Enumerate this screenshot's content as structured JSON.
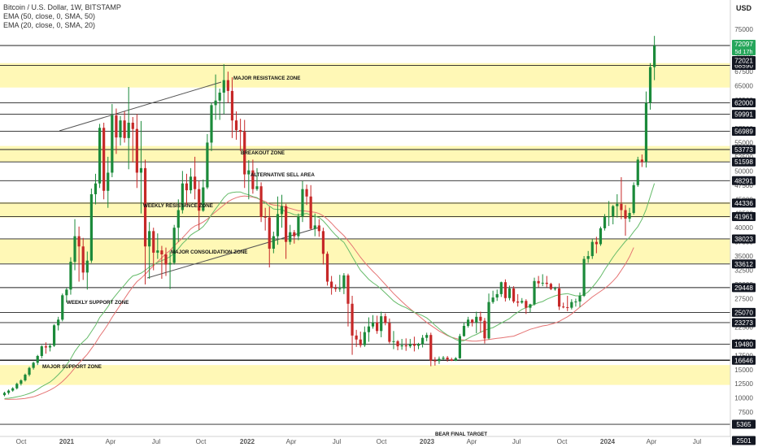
{
  "header": {
    "symbol_line": "Bitcoin / U.S. Dollar, 1W, BITSTAMP",
    "ema1": "EMA (50, close, 0, SMA, 50)",
    "ema2": "EMA (20, close, 0, SMA, 20)",
    "currency": "USD"
  },
  "chart_data": {
    "type": "candlestick",
    "price_ticks": [
      5000,
      7500,
      10000,
      12500,
      15000,
      17500,
      20000,
      22500,
      25000,
      27500,
      30000,
      32500,
      35000,
      37500,
      40000,
      42500,
      45000,
      47500,
      50000,
      52500,
      55000,
      57500,
      60000,
      62500,
      65000,
      67500,
      70000,
      72500,
      75000
    ],
    "time_ticks": [
      {
        "label": "Oct",
        "bold": false
      },
      {
        "label": "2021",
        "bold": true
      },
      {
        "label": "Apr",
        "bold": false
      },
      {
        "label": "Jul",
        "bold": false
      },
      {
        "label": "Oct",
        "bold": false
      },
      {
        "label": "2022",
        "bold": true
      },
      {
        "label": "Apr",
        "bold": false
      },
      {
        "label": "Jul",
        "bold": false
      },
      {
        "label": "Oct",
        "bold": false
      },
      {
        "label": "2023",
        "bold": true
      },
      {
        "label": "Apr",
        "bold": false
      },
      {
        "label": "Jul",
        "bold": false
      },
      {
        "label": "Oct",
        "bold": false
      },
      {
        "label": "2024",
        "bold": true
      },
      {
        "label": "Apr",
        "bold": false
      },
      {
        "label": "Jul",
        "bold": false
      }
    ],
    "levels": [
      "68590",
      "62000",
      "59991",
      "56989",
      "53773",
      "51598",
      "48291",
      "44336",
      "41961",
      "38023",
      "33612",
      "29448",
      "25070",
      "23273",
      "19480",
      "16646",
      "5365",
      "2501"
    ],
    "current_price": {
      "value": "72097",
      "countdown": "5d 17h"
    },
    "last_close_label": "72021",
    "zones": [
      {
        "name": "MAJOR RESISTANCE ZONE",
        "low": 64700,
        "high": 69000
      },
      {
        "name": "BREAKOUT ZONE",
        "low": 51600,
        "high": 54400
      },
      {
        "name": "WEEKLY RESISTANCE ZONE",
        "low": 41800,
        "high": 44500
      },
      {
        "name": "MAJOR CONSOLIDATION ZONE",
        "low": 33700,
        "high": 38000
      },
      {
        "name": "MAJOR SUPPORT ZONE",
        "low": 12300,
        "high": 15800
      }
    ],
    "annotations": {
      "alt_sell": "ALTERNATIVE SELL AREA",
      "weekly_support": "WEEKLY SUPPORT ZONE",
      "bear_target": "BEAR FINAL TARGET"
    },
    "ohlc_weekly": [
      [
        10500,
        11100,
        10300,
        10900
      ],
      [
        10900,
        11500,
        10600,
        11300
      ],
      [
        11300,
        11900,
        11100,
        11700
      ],
      [
        11700,
        12700,
        11500,
        12500
      ],
      [
        12500,
        13300,
        12200,
        13100
      ],
      [
        13100,
        14300,
        12900,
        14100
      ],
      [
        14100,
        15500,
        13800,
        15300
      ],
      [
        15300,
        16400,
        15000,
        16200
      ],
      [
        16200,
        17600,
        15800,
        17400
      ],
      [
        17400,
        19300,
        17000,
        19100
      ],
      [
        19100,
        19800,
        17800,
        18900
      ],
      [
        18900,
        19600,
        18200,
        19200
      ],
      [
        19200,
        23000,
        19000,
        22800
      ],
      [
        22800,
        24300,
        21900,
        23800
      ],
      [
        23800,
        28400,
        23500,
        28100
      ],
      [
        28100,
        29400,
        26800,
        29100
      ],
      [
        29100,
        34800,
        28200,
        34000
      ],
      [
        34000,
        41500,
        32500,
        38500
      ],
      [
        38500,
        40200,
        30500,
        36700
      ],
      [
        36700,
        38200,
        30800,
        32100
      ],
      [
        32100,
        35800,
        29100,
        34200
      ],
      [
        34200,
        46900,
        33800,
        45900
      ],
      [
        45900,
        49500,
        44100,
        47800
      ],
      [
        47800,
        58300,
        47000,
        57600
      ],
      [
        57600,
        58500,
        45000,
        46500
      ],
      [
        46500,
        52500,
        43500,
        49700
      ],
      [
        49700,
        61800,
        48900,
        59800
      ],
      [
        59800,
        61000,
        53000,
        55900
      ],
      [
        55900,
        59700,
        54500,
        58900
      ],
      [
        58900,
        60500,
        55000,
        55800
      ],
      [
        55800,
        64800,
        50300,
        58500
      ],
      [
        58500,
        59500,
        51500,
        57400
      ],
      [
        57400,
        60000,
        47000,
        49700
      ],
      [
        49700,
        58800,
        42500,
        50500
      ],
      [
        50500,
        52000,
        30000,
        36700
      ],
      [
        36700,
        41000,
        31000,
        39400
      ],
      [
        39400,
        40000,
        32500,
        35600
      ],
      [
        35600,
        39000,
        34500,
        36000
      ],
      [
        36000,
        36800,
        31000,
        35300
      ],
      [
        35300,
        36500,
        31500,
        33500
      ],
      [
        33500,
        35800,
        29200,
        33800
      ],
      [
        33800,
        40500,
        33500,
        40000
      ],
      [
        40000,
        45000,
        37500,
        43100
      ],
      [
        43100,
        50000,
        42500,
        47800
      ],
      [
        47800,
        49500,
        44000,
        46600
      ],
      [
        46600,
        50500,
        46000,
        49000
      ],
      [
        49000,
        52500,
        45000,
        46800
      ],
      [
        46800,
        48200,
        39600,
        43000
      ],
      [
        43000,
        48500,
        42800,
        47100
      ],
      [
        47100,
        56500,
        46800,
        55000
      ],
      [
        55000,
        62000,
        53500,
        61600
      ],
      [
        61600,
        67000,
        59000,
        62400
      ],
      [
        62400,
        64500,
        59000,
        63800
      ],
      [
        63800,
        68800,
        60000,
        66000
      ],
      [
        66000,
        67500,
        62000,
        64100
      ],
      [
        64100,
        66500,
        55800,
        58900
      ],
      [
        58900,
        60500,
        55500,
        57200
      ],
      [
        57200,
        59200,
        53500,
        56900
      ],
      [
        56900,
        59000,
        47000,
        49400
      ],
      [
        49400,
        51900,
        45000,
        50100
      ],
      [
        50100,
        52000,
        46000,
        46800
      ],
      [
        46800,
        50500,
        46500,
        47300
      ],
      [
        47300,
        48000,
        41000,
        41900
      ],
      [
        41900,
        43500,
        39500,
        41800
      ],
      [
        41800,
        43700,
        33000,
        36300
      ],
      [
        36300,
        39300,
        35500,
        38500
      ],
      [
        38500,
        45500,
        37000,
        42400
      ],
      [
        42400,
        45800,
        40000,
        43800
      ],
      [
        43800,
        44200,
        34500,
        37500
      ],
      [
        37500,
        40500,
        37000,
        39200
      ],
      [
        39200,
        39600,
        37200,
        38500
      ],
      [
        38500,
        42500,
        37800,
        42000
      ],
      [
        42000,
        48200,
        41000,
        46800
      ],
      [
        46800,
        47600,
        44000,
        45500
      ],
      [
        45500,
        47500,
        39600,
        39800
      ],
      [
        39800,
        42500,
        38500,
        40400
      ],
      [
        40400,
        41500,
        38400,
        39400
      ],
      [
        39400,
        40000,
        33500,
        35400
      ],
      [
        35400,
        35800,
        29800,
        30500
      ],
      [
        30500,
        31500,
        28200,
        29400
      ],
      [
        29400,
        30000,
        28700,
        29200
      ],
      [
        29200,
        31700,
        28700,
        29300
      ],
      [
        29300,
        32000,
        28300,
        31600
      ],
      [
        31600,
        31900,
        22600,
        26600
      ],
      [
        26600,
        28000,
        17600,
        21000
      ],
      [
        21000,
        22000,
        19000,
        20300
      ],
      [
        20300,
        21700,
        18900,
        19300
      ],
      [
        19300,
        22600,
        19000,
        21600
      ],
      [
        21600,
        24200,
        19900,
        22600
      ],
      [
        22600,
        24600,
        22200,
        23300
      ],
      [
        23300,
        24500,
        21300,
        21800
      ],
      [
        21800,
        25200,
        20700,
        24400
      ],
      [
        24400,
        24900,
        22800,
        23200
      ],
      [
        23200,
        24000,
        19600,
        19900
      ],
      [
        19900,
        21800,
        18600,
        20000
      ],
      [
        20000,
        20200,
        18400,
        19100
      ],
      [
        19100,
        20400,
        18500,
        19300
      ],
      [
        19300,
        20500,
        18300,
        19100
      ],
      [
        19100,
        20400,
        18800,
        19500
      ],
      [
        19500,
        20800,
        18200,
        19200
      ],
      [
        19200,
        19700,
        18600,
        19500
      ],
      [
        19500,
        21100,
        18900,
        20600
      ],
      [
        20600,
        21500,
        20000,
        21100
      ],
      [
        21100,
        21500,
        15600,
        16600
      ],
      [
        16600,
        17200,
        15700,
        16500
      ],
      [
        16500,
        17300,
        16000,
        16900
      ],
      [
        16900,
        17400,
        16700,
        17100
      ],
      [
        17100,
        17400,
        16400,
        16800
      ],
      [
        16800,
        17100,
        16500,
        16550
      ],
      [
        16550,
        17200,
        16500,
        17000
      ],
      [
        17000,
        21300,
        16900,
        20900
      ],
      [
        20900,
        23300,
        20800,
        22700
      ],
      [
        22700,
        24300,
        22400,
        23800
      ],
      [
        23800,
        23900,
        22600,
        23300
      ],
      [
        23300,
        25200,
        21400,
        24300
      ],
      [
        24300,
        25200,
        21500,
        23600
      ],
      [
        23600,
        24100,
        19600,
        20500
      ],
      [
        20500,
        28400,
        20300,
        26900
      ],
      [
        26900,
        28900,
        26600,
        27700
      ],
      [
        27700,
        29100,
        27100,
        28300
      ],
      [
        28300,
        30500,
        27800,
        30400
      ],
      [
        30400,
        30900,
        27000,
        27600
      ],
      [
        27600,
        29800,
        27200,
        29300
      ],
      [
        29300,
        29700,
        26700,
        27000
      ],
      [
        27000,
        28300,
        26100,
        26800
      ],
      [
        26800,
        27600,
        26600,
        27100
      ],
      [
        27100,
        27400,
        24800,
        25900
      ],
      [
        25900,
        26600,
        25100,
        26500
      ],
      [
        26500,
        31200,
        26300,
        30600
      ],
      [
        30600,
        31500,
        29500,
        30200
      ],
      [
        30200,
        31800,
        29700,
        30300
      ],
      [
        30300,
        31500,
        29500,
        30100
      ],
      [
        30100,
        30300,
        29000,
        29200
      ],
      [
        29200,
        29600,
        28900,
        29300
      ],
      [
        29300,
        30200,
        25500,
        26100
      ],
      [
        26100,
        26800,
        25800,
        26000
      ],
      [
        26000,
        28000,
        25300,
        25900
      ],
      [
        25900,
        27400,
        25600,
        26900
      ],
      [
        26900,
        27500,
        26100,
        27000
      ],
      [
        27000,
        28600,
        26000,
        28000
      ],
      [
        28000,
        35000,
        27800,
        34500
      ],
      [
        34500,
        35900,
        33800,
        35000
      ],
      [
        35000,
        38000,
        34500,
        37500
      ],
      [
        37500,
        38400,
        35500,
        37100
      ],
      [
        37100,
        40200,
        36800,
        39900
      ],
      [
        39900,
        42400,
        39500,
        41900
      ],
      [
        41900,
        44700,
        40300,
        42000
      ],
      [
        42000,
        44000,
        40600,
        43800
      ],
      [
        43800,
        45900,
        41800,
        44200
      ],
      [
        44200,
        48900,
        41500,
        43100
      ],
      [
        43100,
        44000,
        38600,
        41600
      ],
      [
        41600,
        43500,
        41000,
        42600
      ],
      [
        42600,
        48000,
        42300,
        47500
      ],
      [
        47500,
        52500,
        47200,
        52000
      ],
      [
        52000,
        52900,
        50700,
        51600
      ],
      [
        51600,
        64000,
        50600,
        62000
      ],
      [
        62000,
        69000,
        60800,
        68300
      ],
      [
        68300,
        73800,
        66000,
        72097
      ]
    ],
    "ema50": [
      9800,
      9750,
      9770,
      9800,
      9850,
      9920,
      10050,
      10200,
      10450,
      10750,
      11050,
      11400,
      11800,
      12300,
      12900,
      13600,
      14400,
      15300,
      16150,
      16900,
      17700,
      18700,
      19700,
      20900,
      21900,
      23000,
      24200,
      25300,
      26400,
      27500,
      28600,
      29600,
      30500,
      31100,
      31800,
      32600,
      33300,
      34000,
      34700,
      35400,
      36000,
      36800,
      37500,
      38200,
      39000,
      39800,
      40300,
      40600,
      41000,
      41500,
      42200,
      42800,
      43400,
      44000,
      44600,
      45000,
      45300,
      45500,
      45600,
      45500,
      45400,
      45200,
      44900,
      44600,
      44200,
      44000,
      43900,
      43800,
      43600,
      43400,
      43200,
      43000,
      43000,
      42900,
      42800,
      42700,
      42500,
      42100,
      41500,
      40800,
      40000,
      39300,
      38600,
      37700,
      36800,
      35800,
      34800,
      33900,
      33100,
      32300,
      31600,
      30800,
      30000,
      29200,
      28400,
      27700,
      27000,
      26300,
      25700,
      25100,
      24500,
      23900,
      23300,
      22800,
      22300,
      21800,
      21400,
      21000,
      20700,
      20500,
      20300,
      20200,
      20100,
      20000,
      20000,
      20100,
      20200,
      20300,
      20400,
      20500,
      20600,
      20700,
      20800,
      20900,
      21200,
      21500,
      21800,
      22100,
      22300,
      22500,
      22700,
      22800,
      23000,
      23200,
      23500,
      23900,
      24300,
      24800,
      25400,
      26000,
      26600,
      27200,
      27800,
      28300,
      28800,
      29300,
      29900,
      30600,
      31400,
      32500,
      33600,
      34900,
      36500
    ],
    "ema20": [
      9900,
      9950,
      10050,
      10200,
      10350,
      10550,
      10800,
      11100,
      11500,
      12000,
      12400,
      12800,
      13400,
      14100,
      14900,
      15800,
      16900,
      18200,
      19200,
      19900,
      20600,
      21700,
      22800,
      24200,
      25100,
      26100,
      27300,
      28200,
      29100,
      29900,
      30800,
      31500,
      31700,
      32000,
      32500,
      33100,
      33500,
      33900,
      34200,
      34500,
      34900,
      35500,
      36300,
      37200,
      37900,
      38700,
      39200,
      39600,
      40200,
      41100,
      42300,
      43300,
      44300,
      45300,
      46000,
      46200,
      46300,
      46300,
      46000,
      45800,
      45500,
      45300,
      44800,
      44400,
      43800,
      43300,
      43200,
      43200,
      42800,
      42600,
      42300,
      42200,
      42400,
      42500,
      42200,
      42000,
      41800,
      41200,
      40400,
      39500,
      38700,
      38000,
      37400,
      36200,
      34900,
      33700,
      32500,
      31700,
      30900,
      30300,
      29800,
      29200,
      28500,
      27800,
      27100,
      26600,
      26200,
      25900,
      25500,
      25100,
      24800,
      24500,
      24100,
      23500,
      22800,
      22200,
      21600,
      21100,
      20700,
      20300,
      20000,
      20100,
      20500,
      20900,
      21200,
      21600,
      21900,
      22200,
      22400,
      22800,
      23200,
      23600,
      24000,
      24600,
      25100,
      25600,
      25900,
      26200,
      26500,
      26800,
      27000,
      27400,
      27700,
      28000,
      28200,
      28300,
      28400,
      28200,
      28000,
      28000,
      28200,
      28700,
      29500,
      30400,
      31400,
      32600,
      33700,
      34800,
      35800,
      36700,
      37600,
      38300,
      39300,
      40200,
      41500,
      43200,
      45500,
      47800
    ]
  }
}
